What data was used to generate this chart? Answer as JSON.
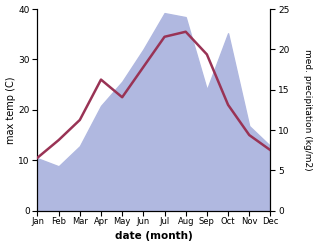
{
  "months": [
    "Jan",
    "Feb",
    "Mar",
    "Apr",
    "May",
    "Jun",
    "Jul",
    "Aug",
    "Sep",
    "Oct",
    "Nov",
    "Dec"
  ],
  "temperature": [
    10.5,
    14.0,
    18.0,
    26.0,
    22.5,
    28.5,
    34.5,
    35.5,
    31.0,
    21.0,
    15.0,
    12.0
  ],
  "precipitation": [
    6.5,
    5.5,
    8.0,
    13.0,
    16.0,
    20.0,
    24.5,
    24.0,
    15.0,
    22.0,
    10.5,
    8.0
  ],
  "temp_color": "#993355",
  "precip_fill_color": "#b0b8e0",
  "ylabel_left": "max temp (C)",
  "ylabel_right": "med. precipitation (kg/m2)",
  "xlabel": "date (month)",
  "temp_ylim": [
    0,
    40
  ],
  "precip_ylim": [
    0,
    25
  ],
  "temp_yticks": [
    0,
    10,
    20,
    30,
    40
  ],
  "precip_yticks": [
    0,
    5,
    10,
    15,
    20,
    25
  ],
  "line_width": 1.8,
  "figsize": [
    3.18,
    2.47
  ],
  "dpi": 100
}
